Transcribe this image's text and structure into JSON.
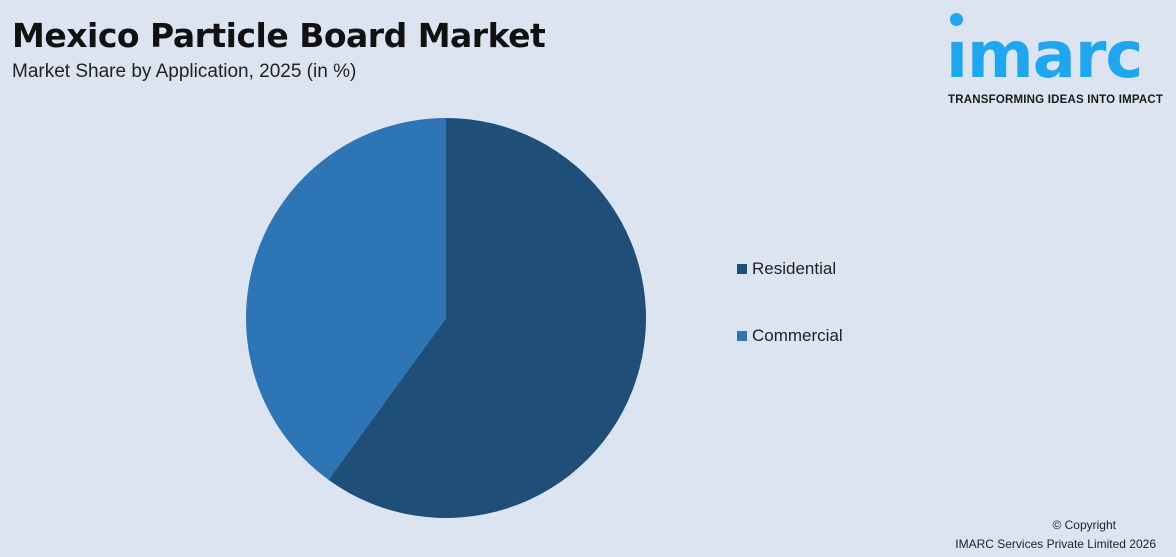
{
  "title": "Mexico Particle Board Market",
  "subtitle": "Market Share by Application, 2025 (in %)",
  "logo": {
    "word": "imarc",
    "tagline": "TRANSFORMING IDEAS INTO IMPACT",
    "color": "#1ea7f0"
  },
  "copyright": {
    "line1": "© Copyright",
    "line2": "IMARC Services Private Limited 2026"
  },
  "chart_data": {
    "type": "pie",
    "title": "Mexico Particle Board Market",
    "subtitle": "Market Share by Application, 2025 (in %)",
    "categories": [
      "Residential",
      "Commercial"
    ],
    "values": [
      60,
      40
    ],
    "colors": [
      "#1f4e79",
      "#2e75b6"
    ],
    "start": "12 o'clock, clockwise",
    "legend": "right"
  }
}
